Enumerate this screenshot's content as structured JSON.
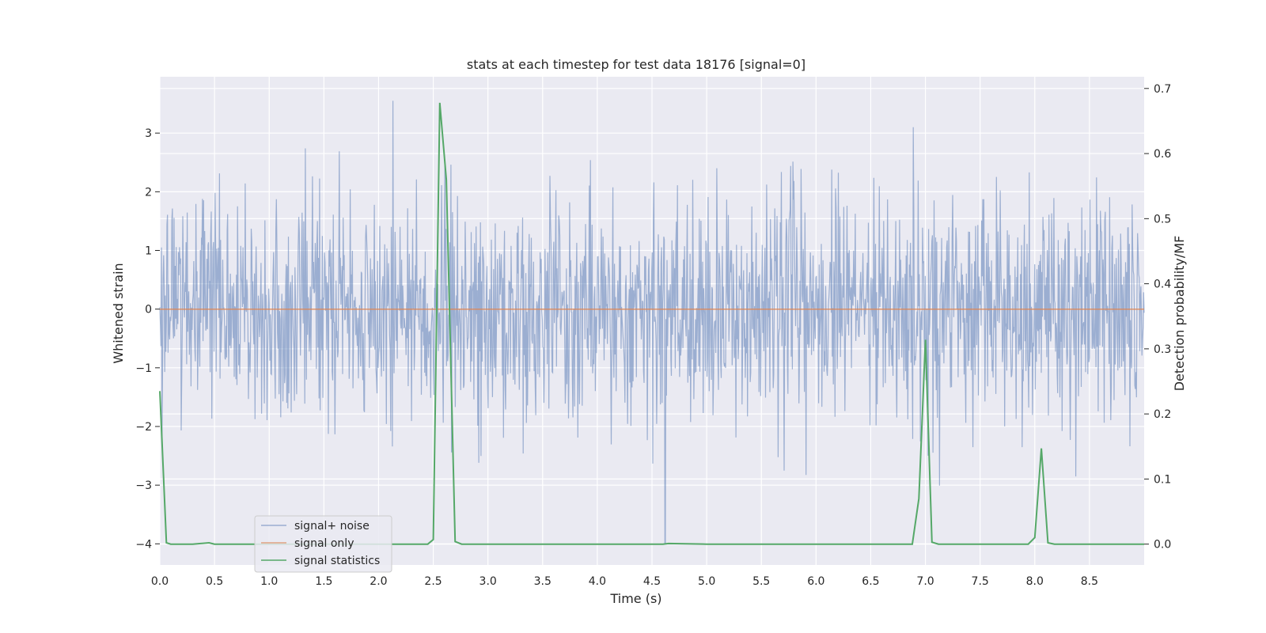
{
  "chart_data": {
    "type": "line",
    "title": "stats at each timestep for test data 18176 [signal=0]",
    "xlabel": "Time (s)",
    "ylabel": "Whitened strain",
    "y2label": "Detection probability/MF",
    "xlim": [
      0.0,
      9.0
    ],
    "ylim": [
      -4.36,
      3.96
    ],
    "y2lim": [
      -0.032,
      0.718
    ],
    "xticks": [
      "0.0",
      "0.5",
      "1.0",
      "1.5",
      "2.0",
      "2.5",
      "3.0",
      "3.5",
      "4.0",
      "4.5",
      "5.0",
      "5.5",
      "6.0",
      "6.5",
      "7.0",
      "7.5",
      "8.0",
      "8.5"
    ],
    "yticks": [
      "3",
      "2",
      "1",
      "0",
      "−1",
      "−2",
      "−3",
      "−4"
    ],
    "y2ticks": [
      "0.7",
      "0.6",
      "0.5",
      "0.4",
      "0.3",
      "0.2",
      "0.1",
      "0.0"
    ],
    "grid": true,
    "legend_position": "lower-left",
    "series": [
      {
        "name": "signal+ noise",
        "color": "#4c72b0",
        "axis": "left",
        "description_values": "dense noise roughly within [-2.4, 2.5], peaks up to 3.55 near t=2.13, dip to -4.0 near t=4.62",
        "envelope": {
          "upper_typical": 1.6,
          "lower_typical": -1.7,
          "max": 3.55,
          "min": -4.0
        }
      },
      {
        "name": "signal only",
        "color": "#dd8452",
        "axis": "left",
        "x": [
          0.0,
          9.0
        ],
        "values": [
          0.0,
          0.0
        ]
      },
      {
        "name": "signal statistics",
        "color": "#55a868",
        "axis": "right",
        "x": [
          0.0,
          0.06,
          0.1,
          0.3,
          0.45,
          0.5,
          1.0,
          2.0,
          2.45,
          2.5,
          2.56,
          2.62,
          2.7,
          2.76,
          3.0,
          4.0,
          4.6,
          4.65,
          5.0,
          6.0,
          6.88,
          6.94,
          7.0,
          7.06,
          7.12,
          7.5,
          7.94,
          8.0,
          8.06,
          8.12,
          8.18,
          8.5,
          9.0
        ],
        "values": [
          0.235,
          0.002,
          0.0,
          0.0,
          0.002,
          0.0,
          0.0,
          0.0,
          0.0,
          0.007,
          0.678,
          0.56,
          0.004,
          0.0,
          0.0,
          0.0,
          0.0,
          0.001,
          0.0,
          0.0,
          0.0,
          0.07,
          0.314,
          0.003,
          0.0,
          0.0,
          0.0,
          0.01,
          0.147,
          0.002,
          0.0,
          0.0,
          0.0
        ]
      }
    ]
  }
}
